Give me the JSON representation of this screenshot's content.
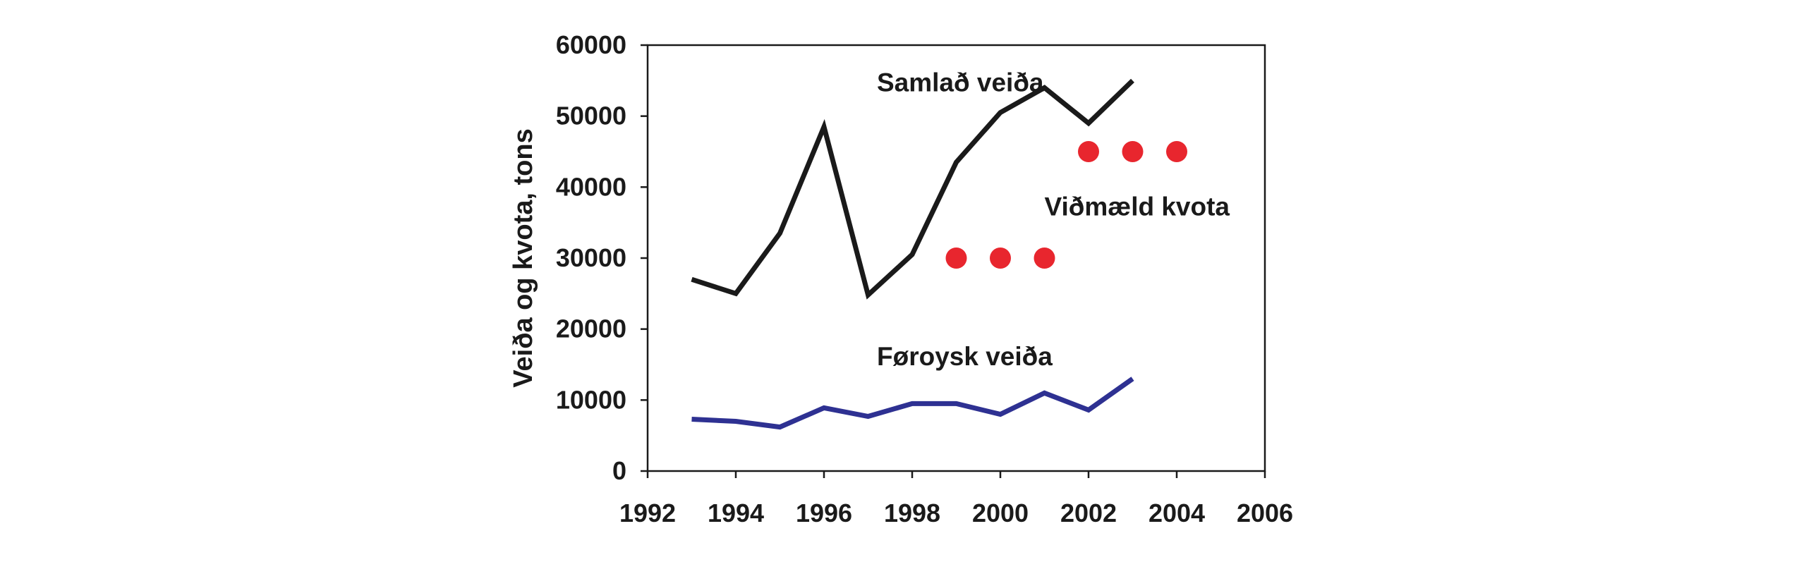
{
  "chart_data": {
    "type": "line",
    "title": "",
    "xlabel": "",
    "ylabel": "Veiða og kvota, tons",
    "xlim": [
      1992,
      2006
    ],
    "ylim": [
      0,
      60000
    ],
    "x_ticks": [
      "1992",
      "1994",
      "1996",
      "1998",
      "2000",
      "2002",
      "2004",
      "2006"
    ],
    "y_ticks": [
      "0",
      "10000",
      "20000",
      "30000",
      "40000",
      "50000",
      "60000"
    ],
    "grid": false,
    "legend": "none",
    "series": [
      {
        "name": "Samlað veiða",
        "kind": "line",
        "color": "#1a1a1a",
        "x": [
          1993,
          1994,
          1995,
          1996,
          1997,
          1998,
          1999,
          2000,
          2001,
          2002,
          2003
        ],
        "values": [
          27000,
          25000,
          33500,
          48500,
          24800,
          30500,
          43500,
          50500,
          54000,
          49000,
          55000
        ]
      },
      {
        "name": "Føroysk veiða",
        "kind": "line",
        "color": "#2e3192",
        "x": [
          1993,
          1994,
          1995,
          1996,
          1997,
          1998,
          1999,
          2000,
          2001,
          2002,
          2003
        ],
        "values": [
          7300,
          7000,
          6200,
          8900,
          7700,
          9500,
          9500,
          8000,
          11000,
          8600,
          13000
        ]
      },
      {
        "name": "Viðmæld kvota",
        "kind": "points",
        "color": "#e8262e",
        "x": [
          1999,
          2000,
          2001,
          2002,
          2003,
          2004
        ],
        "values": [
          30000,
          30000,
          30000,
          45000,
          45000,
          45000
        ]
      }
    ],
    "annotations": [
      {
        "text": "Samlað veiða",
        "x": 1997.2,
        "y": 53500
      },
      {
        "text": "Viðmæld kvota",
        "x": 2001.0,
        "y": 36000
      },
      {
        "text": "Føroysk veiða",
        "x": 1997.2,
        "y": 14900
      }
    ]
  }
}
